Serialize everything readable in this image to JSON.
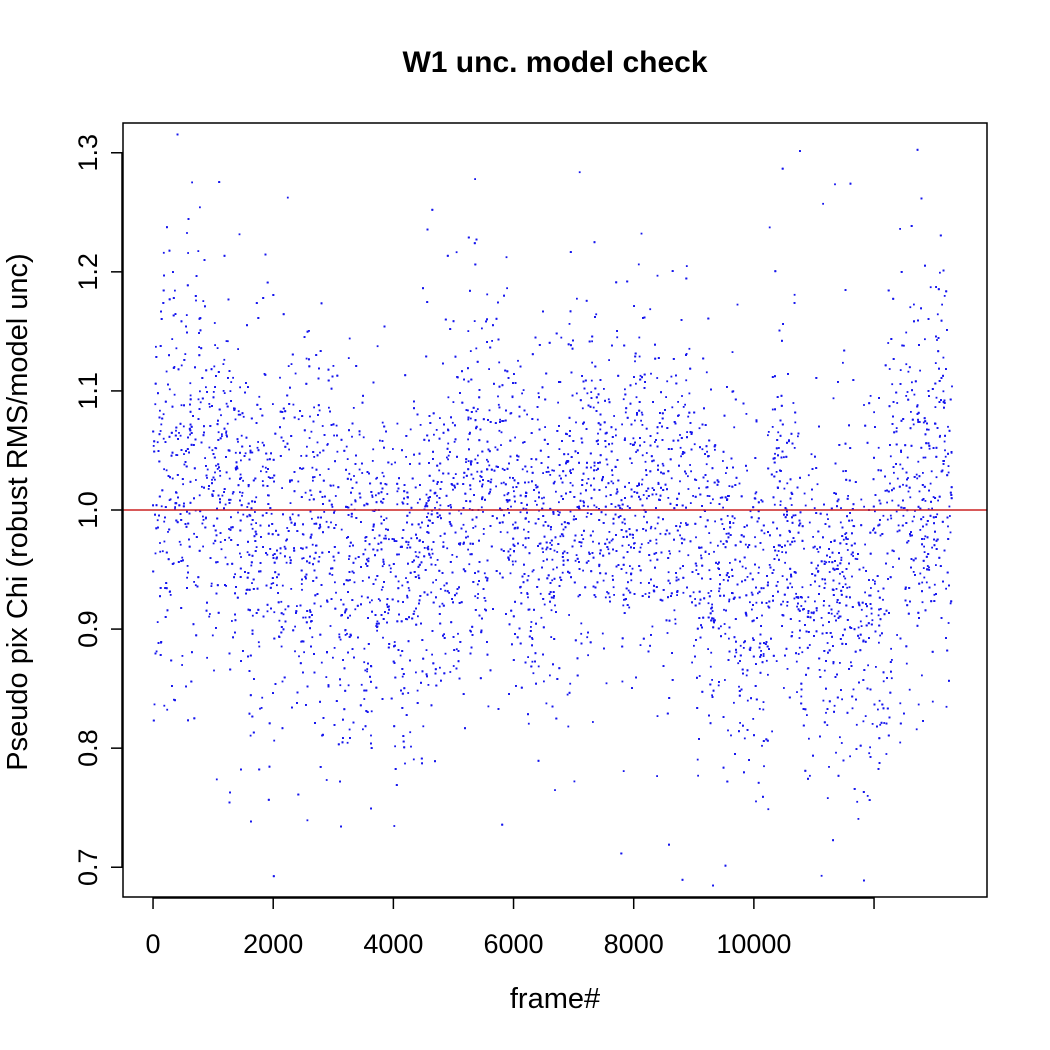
{
  "chart_data": {
    "type": "scatter",
    "title": "W1 unc. model check",
    "xlabel": "frame#",
    "ylabel": "Pseudo pix Chi (robust RMS/model unc)",
    "xlim": [
      -500,
      13880
    ],
    "ylim": [
      0.675,
      1.325
    ],
    "x_ticks": [
      0,
      2000,
      4000,
      6000,
      8000,
      10000,
      12000
    ],
    "x_tick_labels": [
      "0",
      "2000",
      "4000",
      "6000",
      "8000",
      "10000",
      ""
    ],
    "y_ticks": [
      0.7,
      0.8,
      0.9,
      1.0,
      1.1,
      1.2,
      1.3
    ],
    "y_tick_labels": [
      "0.7",
      "0.8",
      "0.9",
      "1.0",
      "1.1",
      "1.2",
      "1.3"
    ],
    "reference_line": {
      "y": 1.0,
      "color": "#cc2222"
    },
    "point_color": "#1515ee",
    "grid": false,
    "legend": "none",
    "frame_range": [
      0,
      13300
    ],
    "segments": [
      {
        "x0": 0,
        "x1": 450,
        "center": 1.03,
        "spread": 0.09
      },
      {
        "x0": 450,
        "x1": 900,
        "center": 1.03,
        "spread": 0.08
      },
      {
        "x0": 900,
        "x1": 1500,
        "center": 1.01,
        "spread": 0.07
      },
      {
        "x0": 1500,
        "x1": 1900,
        "center": 1.0,
        "spread": 0.08
      },
      {
        "x0": 1900,
        "x1": 3100,
        "center": 0.98,
        "spread": 0.08
      },
      {
        "x0": 3100,
        "x1": 3600,
        "center": 0.96,
        "spread": 0.07
      },
      {
        "x0": 3600,
        "x1": 4600,
        "center": 0.94,
        "spread": 0.07
      },
      {
        "x0": 4600,
        "x1": 5200,
        "center": 0.99,
        "spread": 0.07
      },
      {
        "x0": 5200,
        "x1": 5900,
        "center": 1.02,
        "spread": 0.07
      },
      {
        "x0": 5900,
        "x1": 6600,
        "center": 0.99,
        "spread": 0.07
      },
      {
        "x0": 6600,
        "x1": 7400,
        "center": 1.0,
        "spread": 0.07
      },
      {
        "x0": 7400,
        "x1": 8300,
        "center": 1.01,
        "spread": 0.07
      },
      {
        "x0": 8300,
        "x1": 9000,
        "center": 1.01,
        "spread": 0.07
      },
      {
        "x0": 9000,
        "x1": 9700,
        "center": 0.96,
        "spread": 0.07
      },
      {
        "x0": 9700,
        "x1": 10300,
        "center": 0.93,
        "spread": 0.07
      },
      {
        "x0": 10300,
        "x1": 10700,
        "center": 0.99,
        "spread": 0.07
      },
      {
        "x0": 10700,
        "x1": 11600,
        "center": 0.93,
        "spread": 0.07
      },
      {
        "x0": 11600,
        "x1": 12300,
        "center": 0.93,
        "spread": 0.08
      },
      {
        "x0": 12300,
        "x1": 13300,
        "center": 1.02,
        "spread": 0.08
      }
    ]
  }
}
